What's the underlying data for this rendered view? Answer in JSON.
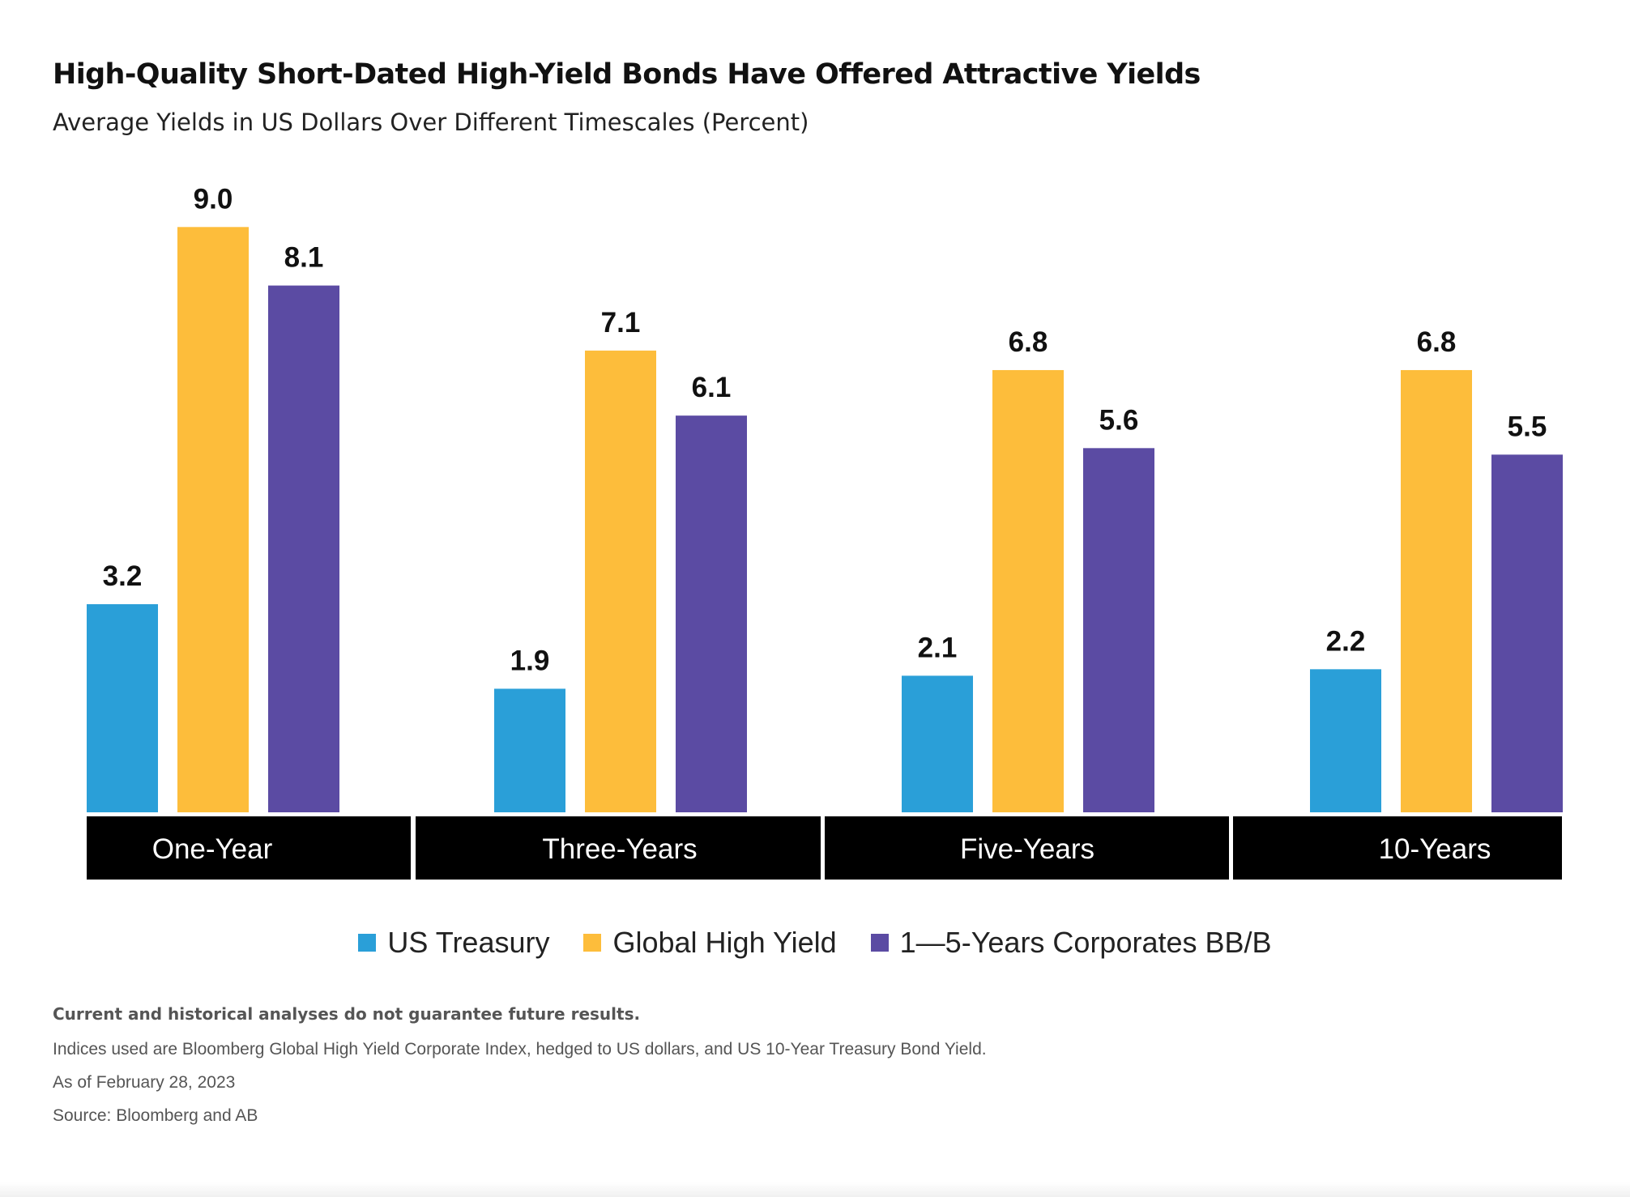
{
  "header": {
    "title": "High-Quality Short-Dated High-Yield Bonds Have Offered Attractive Yields",
    "subtitle": "Average Yields in US Dollars Over Different Timescales (Percent)"
  },
  "chart_data": {
    "type": "bar",
    "title": "High-Quality Short-Dated High-Yield Bonds Have Offered Attractive Yields",
    "subtitle": "Average Yields in US Dollars Over Different Timescales (Percent)",
    "categories": [
      "One-Year",
      "Three-Years",
      "Five-Years",
      "10-Years"
    ],
    "series": [
      {
        "name": "US Treasury",
        "values": [
          3.2,
          1.9,
          2.1,
          2.2
        ],
        "labels": [
          "3.2",
          "1.9",
          "2.1",
          "2.2"
        ],
        "color": "#2a9fd8"
      },
      {
        "name": "Global High Yield",
        "values": [
          9.0,
          7.1,
          6.8,
          6.8
        ],
        "labels": [
          "9.0",
          "7.1",
          "6.8",
          "6.8"
        ],
        "color": "#fdbd3b"
      },
      {
        "name": "1—5-Years Corporates BB/B",
        "values": [
          8.1,
          6.1,
          5.6,
          5.5
        ],
        "labels": [
          "8.1",
          "6.1",
          "5.6",
          "5.5"
        ],
        "color": "#5b4ba3"
      }
    ],
    "ylim": [
      0,
      10
    ],
    "grid": false,
    "legend_position": "bottom-center",
    "xlabel": "",
    "ylabel": ""
  },
  "footer": {
    "disclaimer": "Current and historical analyses do not guarantee future results.",
    "indices_note": "Indices used are Bloomberg Global High Yield Corporate Index, hedged to US dollars, and US 10-Year Treasury Bond Yield.",
    "as_of": "As of February 28, 2023",
    "source": "Source: Bloomberg and AB"
  },
  "colors": {
    "category_band": "#000000",
    "background": "#ffffff"
  }
}
